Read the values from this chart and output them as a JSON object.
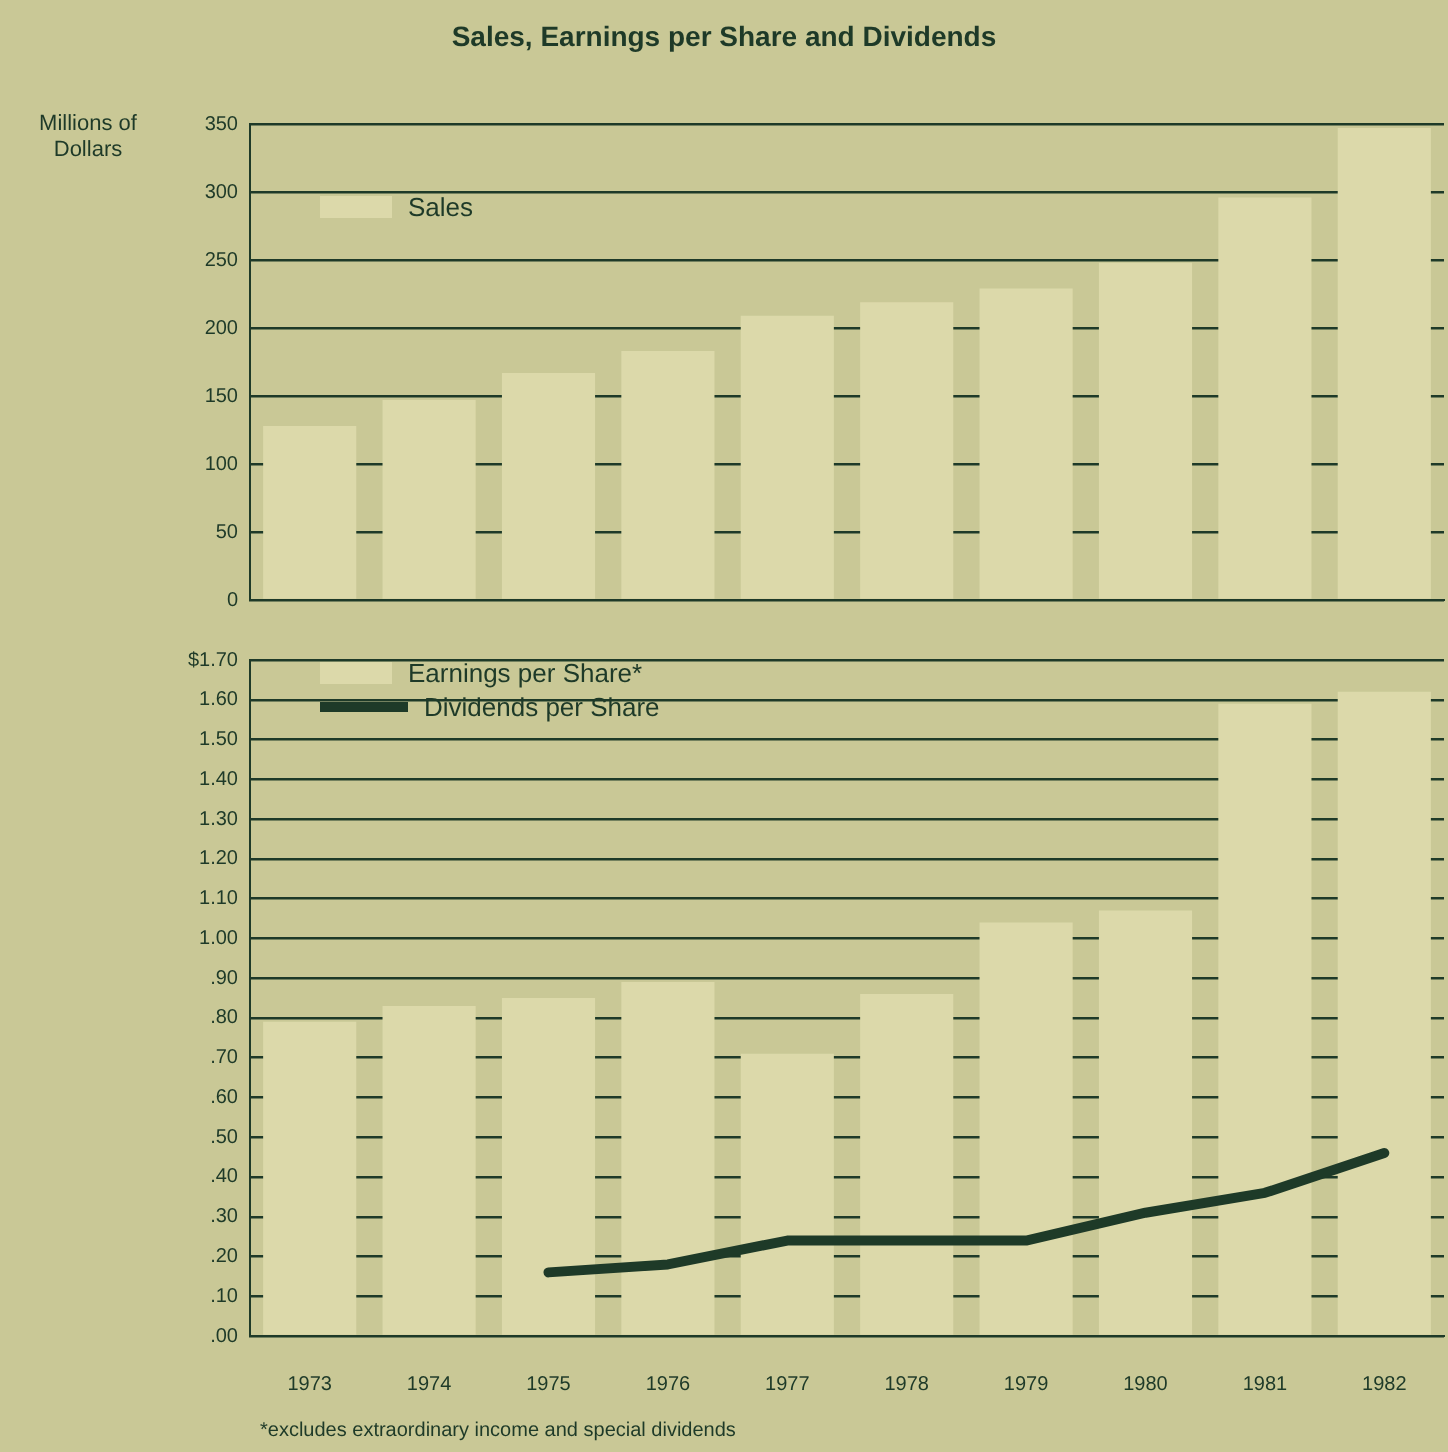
{
  "chart_data": [
    {
      "type": "bar",
      "title": "Sales, Earnings per Share and Dividends",
      "ylabel": "Millions of Dollars",
      "categories": [
        "1973",
        "1974",
        "1975",
        "1976",
        "1977",
        "1978",
        "1979",
        "1980",
        "1981",
        "1982"
      ],
      "series": [
        {
          "name": "Sales",
          "color": "#dcd9aa",
          "values": [
            128,
            147,
            167,
            183,
            209,
            219,
            229,
            248,
            296,
            347
          ]
        }
      ],
      "ylim": [
        0,
        350
      ],
      "yticks": [
        0,
        50,
        100,
        150,
        200,
        250,
        300,
        350
      ],
      "grid": "y",
      "legend": "top left",
      "tick_labels": "y"
    },
    {
      "type": "bar",
      "categories": [
        "1973",
        "1974",
        "1975",
        "1976",
        "1977",
        "1978",
        "1979",
        "1980",
        "1981",
        "1982"
      ],
      "series": [
        {
          "name": "Earnings per Share*",
          "color": "#dcd9aa",
          "values": [
            0.79,
            0.83,
            0.85,
            0.89,
            0.71,
            0.86,
            1.04,
            1.07,
            1.59,
            1.62
          ]
        },
        {
          "name": "Dividends per Share",
          "type": "line",
          "color": "#1e3a28",
          "values": [
            null,
            null,
            0.16,
            0.18,
            0.24,
            0.24,
            0.24,
            0.31,
            0.36,
            0.46
          ]
        }
      ],
      "ylim": [
        0,
        1.7
      ],
      "yticks": [
        {
          "value": 0,
          "label": ".00"
        },
        {
          "value": 0.1,
          "label": ".10"
        },
        {
          "value": 0.2,
          "label": ".20"
        },
        {
          "value": 0.3,
          "label": ".30"
        },
        {
          "value": 0.4,
          "label": ".40"
        },
        {
          "value": 0.5,
          "label": ".50"
        },
        {
          "value": 0.6,
          "label": ".60"
        },
        {
          "value": 0.7,
          "label": ".70"
        },
        {
          "value": 0.8,
          "label": ".80"
        },
        {
          "value": 0.9,
          "label": ".90"
        },
        {
          "value": 1,
          "label": "1.00"
        },
        {
          "value": 1.1,
          "label": "1.10"
        },
        {
          "value": 1.2,
          "label": "1.20"
        },
        {
          "value": 1.3,
          "label": "1.30"
        },
        {
          "value": 1.4,
          "label": "1.40"
        },
        {
          "value": 1.5,
          "label": "1.50"
        },
        {
          "value": 1.6,
          "label": "1.60"
        },
        {
          "value": 1.7,
          "label": "$1.70"
        }
      ],
      "grid": "y",
      "legend": "top left",
      "marker": "none",
      "line_style": "solid",
      "annotations": [
        "*excludes extraordinary income and special dividends"
      ]
    }
  ]
}
